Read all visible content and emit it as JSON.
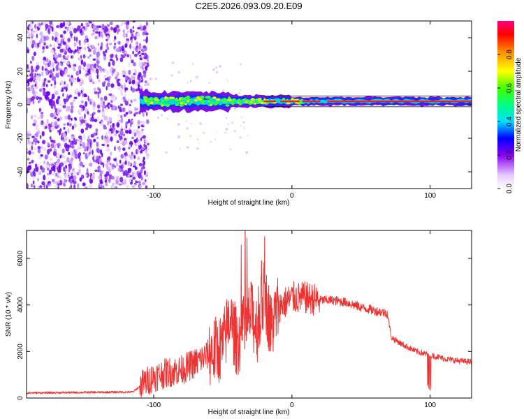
{
  "title": "C2E5.2026.093.09.20.E09",
  "chart_data": [
    {
      "type": "heatmap",
      "name": "spectrogram",
      "title": "C2E5.2026.093.09.20.E09",
      "xlabel": "Height of straight line (km)",
      "ylabel": "Frequency (Hz)",
      "xlim": [
        -192,
        130
      ],
      "ylim": [
        -50,
        50
      ],
      "x_ticks": [
        -100,
        0,
        100
      ],
      "y_ticks": [
        -40,
        -20,
        0,
        20,
        40
      ],
      "noise_region_x": [
        -192,
        -110
      ],
      "signal_x_start": -110,
      "signal_center_frequency_hz": 2,
      "colorbar": {
        "label": "Normalized spectral amplitude",
        "range": [
          0,
          1
        ],
        "ticks": [
          0.0,
          0.2,
          0.4,
          0.6,
          0.8
        ]
      }
    },
    {
      "type": "line",
      "name": "snr",
      "xlabel": "Height of straight line (km)",
      "ylabel": "SNR (10 * v/v)",
      "xlim": [
        -192,
        130
      ],
      "ylim": [
        0,
        7200
      ],
      "x_ticks": [
        -100,
        0,
        100
      ],
      "y_ticks": [
        0,
        2000,
        4000,
        6000
      ],
      "color": "#ee3333",
      "series": [
        {
          "name": "SNR",
          "x": [
            -192,
            -150,
            -115,
            -108,
            -100,
            -90,
            -80,
            -70,
            -60,
            -50,
            -45,
            -40,
            -35,
            -30,
            -25,
            -20,
            -15,
            -10,
            -5,
            0,
            10,
            20,
            30,
            40,
            50,
            60,
            69,
            72,
            80,
            90,
            100,
            110,
            120,
            130
          ],
          "values": [
            220,
            240,
            260,
            600,
            900,
            1100,
            1200,
            1500,
            1900,
            2200,
            3500,
            2400,
            2800,
            3600,
            3000,
            4500,
            3000,
            3900,
            4100,
            4300,
            4300,
            4200,
            4200,
            4100,
            3900,
            3750,
            3650,
            2600,
            2300,
            2000,
            1850,
            1700,
            1600,
            1550
          ]
        }
      ]
    }
  ]
}
